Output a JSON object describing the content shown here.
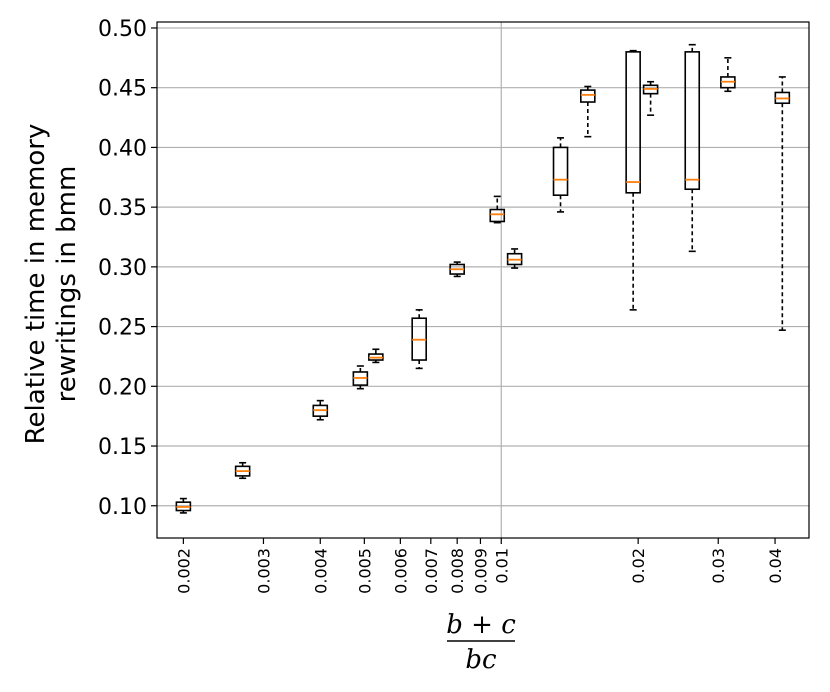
{
  "chart_data": {
    "type": "box",
    "title": "",
    "ylabel_lines": [
      "Relative time in memory",
      "rewritings in bmm"
    ],
    "xlabel": {
      "numerator": "b + c",
      "denominator": "bc"
    },
    "x_scale": "log",
    "xlim": [
      0.00175,
      0.0475
    ],
    "ylim": [
      0.073,
      0.505
    ],
    "x_ticks": [
      0.002,
      0.003,
      0.004,
      0.005,
      0.006,
      0.007,
      0.008,
      0.009,
      0.01,
      0.02,
      0.03,
      0.04
    ],
    "x_tick_labels": [
      "0.002",
      "0.003",
      "0.004",
      "0.005",
      "0.006",
      "0.007",
      "0.008",
      "0.009",
      "0.01",
      "0.02",
      "0.03",
      "0.04"
    ],
    "y_ticks": [
      0.1,
      0.15,
      0.2,
      0.25,
      0.3,
      0.35,
      0.4,
      0.45,
      0.5
    ],
    "y_tick_labels": [
      "0.10",
      "0.15",
      "0.20",
      "0.25",
      "0.30",
      "0.35",
      "0.40",
      "0.45",
      "0.50"
    ],
    "grid": true,
    "colors": {
      "box": "#000000",
      "median": "#ff7f0e",
      "grid": "#b0b0b0"
    },
    "boxes": [
      {
        "x": 0.002,
        "whisker_low": 0.094,
        "q1": 0.096,
        "median": 0.099,
        "q3": 0.103,
        "whisker_high": 0.106
      },
      {
        "x": 0.0027,
        "whisker_low": 0.123,
        "q1": 0.125,
        "median": 0.129,
        "q3": 0.133,
        "whisker_high": 0.136
      },
      {
        "x": 0.004,
        "whisker_low": 0.172,
        "q1": 0.175,
        "median": 0.18,
        "q3": 0.184,
        "whisker_high": 0.188
      },
      {
        "x": 0.0049,
        "whisker_low": 0.198,
        "q1": 0.201,
        "median": 0.207,
        "q3": 0.212,
        "whisker_high": 0.217
      },
      {
        "x": 0.0053,
        "whisker_low": 0.22,
        "q1": 0.222,
        "median": 0.224,
        "q3": 0.227,
        "whisker_high": 0.231
      },
      {
        "x": 0.0066,
        "whisker_low": 0.215,
        "q1": 0.222,
        "median": 0.239,
        "q3": 0.257,
        "whisker_high": 0.264
      },
      {
        "x": 0.008,
        "whisker_low": 0.292,
        "q1": 0.294,
        "median": 0.298,
        "q3": 0.302,
        "whisker_high": 0.304
      },
      {
        "x": 0.0098,
        "whisker_low": 0.337,
        "q1": 0.338,
        "median": 0.344,
        "q3": 0.348,
        "whisker_high": 0.359
      },
      {
        "x": 0.0107,
        "whisker_low": 0.299,
        "q1": 0.302,
        "median": 0.306,
        "q3": 0.311,
        "whisker_high": 0.315
      },
      {
        "x": 0.0135,
        "whisker_low": 0.346,
        "q1": 0.36,
        "median": 0.373,
        "q3": 0.4,
        "whisker_high": 0.408
      },
      {
        "x": 0.0155,
        "whisker_low": 0.409,
        "q1": 0.438,
        "median": 0.444,
        "q3": 0.448,
        "whisker_high": 0.451
      },
      {
        "x": 0.0195,
        "whisker_low": 0.264,
        "q1": 0.362,
        "median": 0.371,
        "q3": 0.48,
        "whisker_high": 0.481
      },
      {
        "x": 0.0213,
        "whisker_low": 0.427,
        "q1": 0.445,
        "median": 0.449,
        "q3": 0.452,
        "whisker_high": 0.455
      },
      {
        "x": 0.0263,
        "whisker_low": 0.313,
        "q1": 0.365,
        "median": 0.373,
        "q3": 0.48,
        "whisker_high": 0.486
      },
      {
        "x": 0.0315,
        "whisker_low": 0.447,
        "q1": 0.45,
        "median": 0.455,
        "q3": 0.459,
        "whisker_high": 0.475
      },
      {
        "x": 0.0415,
        "whisker_low": 0.247,
        "q1": 0.437,
        "median": 0.441,
        "q3": 0.446,
        "whisker_high": 0.459
      }
    ]
  }
}
